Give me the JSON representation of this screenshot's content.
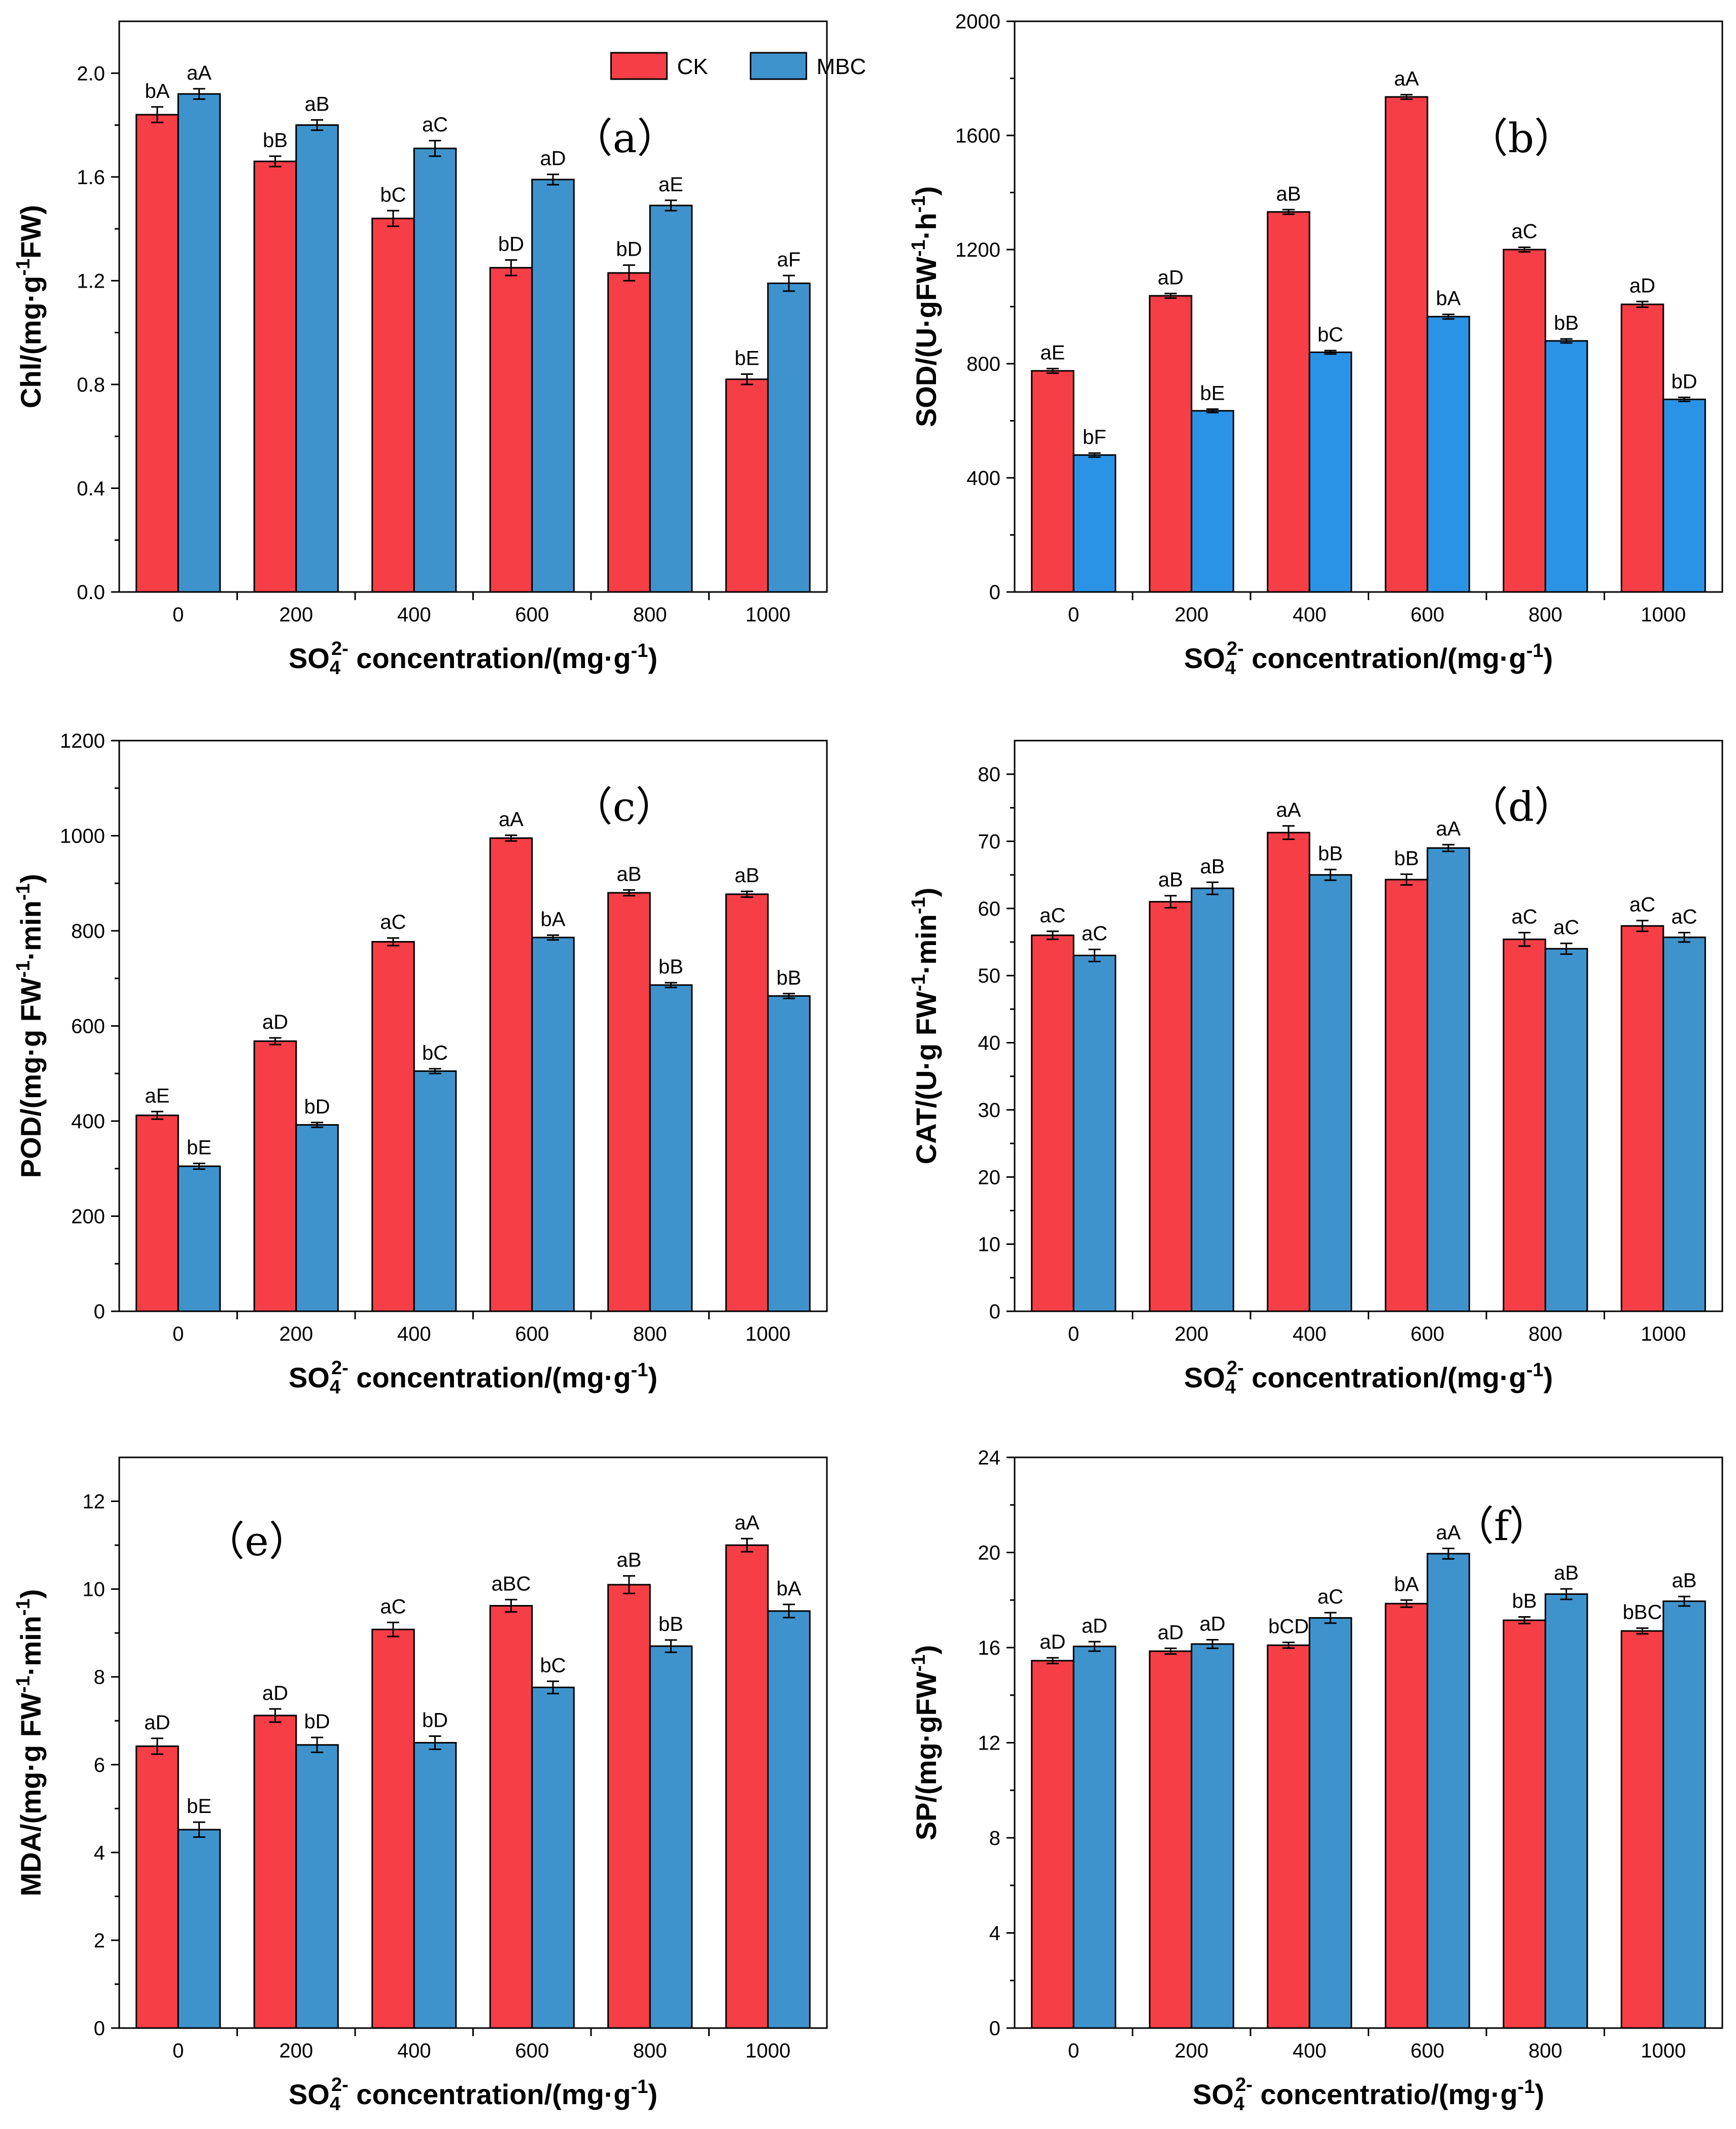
{
  "figure_title": "Multi-panel bar chart: CK vs MBC under SO4 2- concentrations",
  "colors": {
    "CK": "#f63e46",
    "MBC": "#3f93cd",
    "MBC_alt": "#2b93e6"
  },
  "legend": {
    "ck_label": "CK",
    "mbc_label": "MBC"
  },
  "chart_data": [
    {
      "id": "a",
      "type": "bar",
      "panel_label": "（a）",
      "categories": [
        "0",
        "200",
        "400",
        "600",
        "800",
        "1000"
      ],
      "xlabel": "SO4 2- concentration/(mg·g-1)",
      "xlabel_parts": {
        "main": "SO",
        "sub": "4",
        "sup": "2-",
        "rest": " concentration/(mg·g",
        "sup2": "-1",
        "end": ")"
      },
      "ylabel": "Chl/(mg·g-1FW)",
      "ylabel_parts": {
        "pre": "Chl/(mg·g",
        "sup": "-1",
        "post": "FW)"
      },
      "ylim": [
        0,
        2.2
      ],
      "yticks": [
        0.0,
        0.4,
        0.8,
        1.2,
        1.6,
        2.0
      ],
      "ytick_labels": [
        "0.0",
        "0.4",
        "0.8",
        "1.2",
        "1.6",
        "2.0"
      ],
      "show_legend": true,
      "series": [
        {
          "name": "CK",
          "values": [
            1.84,
            1.66,
            1.44,
            1.25,
            1.23,
            0.82
          ],
          "errors": [
            0.03,
            0.02,
            0.03,
            0.03,
            0.03,
            0.02
          ],
          "labels": [
            "bA",
            "bB",
            "bC",
            "bD",
            "bD",
            "bE"
          ]
        },
        {
          "name": "MBC",
          "values": [
            1.92,
            1.8,
            1.71,
            1.59,
            1.49,
            1.19
          ],
          "errors": [
            0.02,
            0.02,
            0.03,
            0.02,
            0.02,
            0.03
          ],
          "labels": [
            "aA",
            "aB",
            "aC",
            "aD",
            "aE",
            "aF"
          ]
        }
      ]
    },
    {
      "id": "b",
      "type": "bar",
      "panel_label": "（b）",
      "categories": [
        "0",
        "200",
        "400",
        "600",
        "800",
        "1000"
      ],
      "xlabel": "SO4 2- concentration/(mg·g-1)",
      "xlabel_parts": {
        "main": "SO",
        "sub": "4",
        "sup": "2-",
        "rest": " concentration/(mg·g",
        "sup2": "-1",
        "end": ")"
      },
      "ylabel": "SOD/(U·gFW-1·h-1)",
      "ylabel_parts": {
        "pre": "SOD/(U·gFW",
        "sup": "-1",
        "mid": "·h",
        "sup2": "-1",
        "post": ")"
      },
      "ylim": [
        0,
        2000
      ],
      "yticks": [
        0,
        400,
        800,
        1200,
        1600,
        2000
      ],
      "ytick_labels": [
        "0",
        "400",
        "800",
        "1200",
        "1600",
        "2000"
      ],
      "show_legend": false,
      "series": [
        {
          "name": "CK",
          "values": [
            775,
            1038,
            1332,
            1735,
            1200,
            1008
          ],
          "errors": [
            8,
            8,
            8,
            8,
            8,
            10
          ],
          "labels": [
            "aE",
            "aD",
            "aB",
            "aA",
            "aC",
            "aD"
          ]
        },
        {
          "name": "MBC",
          "values": [
            480,
            635,
            840,
            965,
            880,
            675
          ],
          "errors": [
            7,
            6,
            6,
            8,
            7,
            7
          ],
          "labels": [
            "bF",
            "bE",
            "bC",
            "bA",
            "bB",
            "bD"
          ]
        }
      ]
    },
    {
      "id": "c",
      "type": "bar",
      "panel_label": "（c）",
      "categories": [
        "0",
        "200",
        "400",
        "600",
        "800",
        "1000"
      ],
      "xlabel": "SO4 2- concentration/(mg·g-1)",
      "xlabel_parts": {
        "main": "SO",
        "sub": "4",
        "sup": "2-",
        "rest": " concentration/(mg·g",
        "sup2": "-1",
        "end": ")"
      },
      "ylabel": "POD/(mg·g FW-1·min-1)",
      "ylabel_parts": {
        "pre": "POD/(mg·g FW",
        "sup": "-1",
        "mid": "·min",
        "sup2": "-1",
        "post": ")"
      },
      "ylim": [
        0,
        1200
      ],
      "yticks": [
        0,
        200,
        400,
        600,
        800,
        1000,
        1200
      ],
      "ytick_labels": [
        "0",
        "200",
        "400",
        "600",
        "800",
        "1000",
        "1200"
      ],
      "show_legend": false,
      "series": [
        {
          "name": "CK",
          "values": [
            412,
            568,
            777,
            995,
            880,
            877
          ],
          "errors": [
            8,
            7,
            8,
            6,
            6,
            6
          ],
          "labels": [
            "aE",
            "aD",
            "aC",
            "aA",
            "aB",
            "aB"
          ]
        },
        {
          "name": "MBC",
          "values": [
            305,
            392,
            505,
            786,
            686,
            663
          ],
          "errors": [
            6,
            5,
            5,
            5,
            5,
            5
          ],
          "labels": [
            "bE",
            "bD",
            "bC",
            "bA",
            "bB",
            "bB"
          ]
        }
      ]
    },
    {
      "id": "d",
      "type": "bar",
      "panel_label": "（d）",
      "categories": [
        "0",
        "200",
        "400",
        "600",
        "800",
        "1000"
      ],
      "xlabel": "SO4 2- concentration/(mg·g-1)",
      "xlabel_parts": {
        "main": "SO",
        "sub": "4",
        "sup": "2-",
        "rest": " concentration/(mg·g",
        "sup2": "-1",
        "end": ")"
      },
      "ylabel": "CAT/(U·g FW-1·min-1)",
      "ylabel_parts": {
        "pre": "CAT/(U·g FW",
        "sup": "-1",
        "mid": "·min",
        "sup2": "-1",
        "post": ")"
      },
      "ylim": [
        0,
        85
      ],
      "yticks": [
        0,
        10,
        20,
        30,
        40,
        50,
        60,
        70,
        80
      ],
      "ytick_labels": [
        "0",
        "10",
        "20",
        "30",
        "40",
        "50",
        "60",
        "70",
        "80"
      ],
      "show_legend": false,
      "series": [
        {
          "name": "CK",
          "values": [
            56.0,
            61.0,
            71.3,
            64.3,
            55.4,
            57.4
          ],
          "errors": [
            0.6,
            0.9,
            1.0,
            0.8,
            1.0,
            0.8
          ],
          "labels": [
            "aC",
            "aB",
            "aA",
            "bB",
            "aC",
            "aC"
          ]
        },
        {
          "name": "MBC",
          "values": [
            53.0,
            63.0,
            65.0,
            69.0,
            54.0,
            55.7
          ],
          "errors": [
            0.9,
            0.9,
            0.8,
            0.5,
            0.8,
            0.7
          ],
          "labels": [
            "aC",
            "aB",
            "bB",
            "aA",
            "aC",
            "aC"
          ]
        }
      ]
    },
    {
      "id": "e",
      "type": "bar",
      "panel_label": "（e）",
      "categories": [
        "0",
        "200",
        "400",
        "600",
        "800",
        "1000"
      ],
      "xlabel": "SO4 2- concentration/(mg·g-1)",
      "xlabel_parts": {
        "main": "SO",
        "sub": "4",
        "sup": "2-",
        "rest": " concentration/(mg·g",
        "sup2": "-1",
        "end": ")"
      },
      "ylabel": "MDA/(mg·g FW-1·min-1)",
      "ylabel_parts": {
        "pre": "MDA/(mg·g FW",
        "sup": "-1",
        "mid": "·min",
        "sup2": "-1",
        "post": ")"
      },
      "ylim": [
        0,
        13
      ],
      "yticks": [
        0,
        2,
        4,
        6,
        8,
        10,
        12
      ],
      "ytick_labels": [
        "0",
        "2",
        "4",
        "6",
        "8",
        "10",
        "12"
      ],
      "show_legend": false,
      "series": [
        {
          "name": "CK",
          "values": [
            6.42,
            7.12,
            9.08,
            9.62,
            10.1,
            11.0
          ],
          "errors": [
            0.18,
            0.15,
            0.16,
            0.14,
            0.2,
            0.15
          ],
          "labels": [
            "aD",
            "aD",
            "aC",
            "aBC",
            "aB",
            "aA"
          ]
        },
        {
          "name": "MBC",
          "values": [
            4.52,
            6.45,
            6.5,
            7.76,
            8.7,
            9.5
          ],
          "errors": [
            0.17,
            0.17,
            0.15,
            0.14,
            0.14,
            0.15
          ],
          "labels": [
            "bE",
            "bD",
            "bD",
            "bC",
            "bB",
            "bA"
          ]
        }
      ]
    },
    {
      "id": "f",
      "type": "bar",
      "panel_label": "（f）",
      "categories": [
        "0",
        "200",
        "400",
        "600",
        "800",
        "1000"
      ],
      "xlabel": "SO4 2- concentratio/(mg·g-1)",
      "xlabel_parts": {
        "main": "SO",
        "sub": "4",
        "sup": "2-",
        "rest": " concentratio/(mg·g",
        "sup2": "-1",
        "end": ")"
      },
      "ylabel": "SP/(mg·gFW-1)",
      "ylabel_parts": {
        "pre": "SP/(mg·gFW",
        "sup": "-1",
        "post": ")"
      },
      "ylim": [
        0,
        24
      ],
      "yticks": [
        0,
        4,
        8,
        12,
        16,
        20,
        24
      ],
      "ytick_labels": [
        "0",
        "4",
        "8",
        "12",
        "16",
        "20",
        "24"
      ],
      "show_legend": false,
      "series": [
        {
          "name": "CK",
          "values": [
            15.45,
            15.85,
            16.1,
            17.85,
            17.15,
            16.7
          ],
          "errors": [
            0.12,
            0.12,
            0.12,
            0.15,
            0.14,
            0.12
          ],
          "labels": [
            "aD",
            "aD",
            "bCD",
            "bA",
            "bB",
            "bBC"
          ]
        },
        {
          "name": "MBC",
          "values": [
            16.05,
            16.15,
            17.25,
            19.95,
            18.25,
            17.95
          ],
          "errors": [
            0.2,
            0.18,
            0.22,
            0.22,
            0.22,
            0.2
          ],
          "labels": [
            "aD",
            "aD",
            "aC",
            "aA",
            "aB",
            "aB"
          ]
        }
      ]
    }
  ]
}
